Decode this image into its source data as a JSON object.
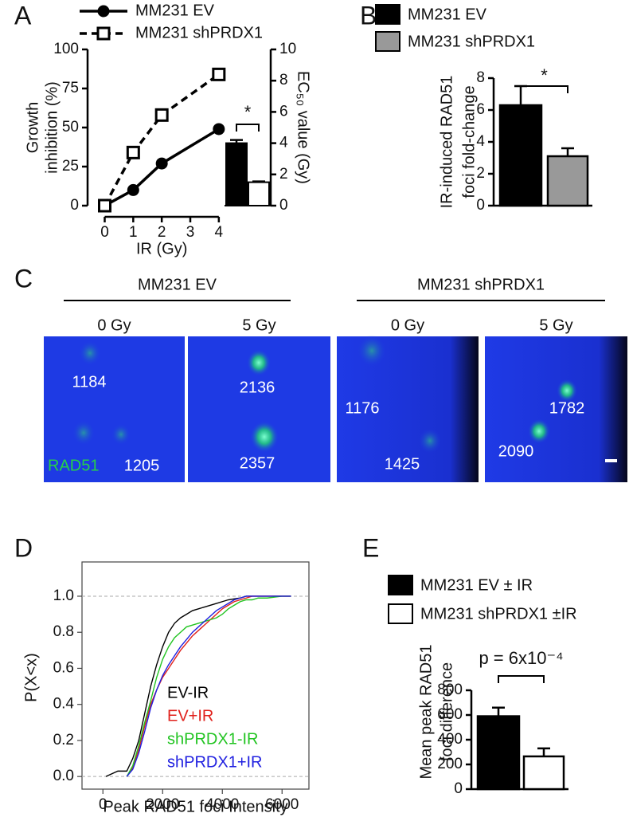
{
  "chart_data": [
    {
      "panel": "A",
      "type": "line",
      "legend": "top",
      "xlabel": "IR (Gy)",
      "ylabel": [
        "Growth",
        "inhibition (%)"
      ],
      "y2label": "EC₅₀ value (Gy)",
      "x": [
        0,
        1,
        2,
        4
      ],
      "xlim": [
        -0.6,
        4.2
      ],
      "xticks": [
        0,
        1,
        2,
        3,
        4
      ],
      "ylim": [
        0,
        100
      ],
      "yticks": [
        0,
        25,
        50,
        75,
        100
      ],
      "y2lim": [
        0,
        10
      ],
      "y2ticks": [
        0,
        2,
        4,
        6,
        8,
        10
      ],
      "series": [
        {
          "name": "MM231 EV",
          "color": "#000000",
          "marker": "circle",
          "dash": false,
          "values": [
            0,
            10,
            27,
            49
          ],
          "ec50": 4.0,
          "ec50_error": 0.2,
          "ec50_color": "#000000"
        },
        {
          "name": "MM231 shPRDX1",
          "color": "#000000",
          "marker": "square",
          "dash": true,
          "values": [
            0,
            34,
            58,
            84
          ],
          "ec50": 1.5,
          "ec50_error": 0.05,
          "ec50_color": "#ffffff"
        }
      ],
      "annotation": "*"
    },
    {
      "panel": "B",
      "type": "bar",
      "legend": "top-left",
      "ylabel": [
        "IR-induced RAD51",
        "foci fold-change"
      ],
      "ylim": [
        0,
        8
      ],
      "yticks": [
        0,
        2,
        4,
        6,
        8
      ],
      "series": [
        {
          "name": "MM231 EV",
          "color": "#000000",
          "values": [
            6.3
          ],
          "errors": [
            1.2
          ]
        },
        {
          "name": "MM231 shPRDX1",
          "color": "#999999",
          "values": [
            3.1
          ],
          "errors": [
            0.5
          ]
        }
      ],
      "annotation": "*"
    },
    {
      "panel": "C",
      "type": "image",
      "marker": "RAD51",
      "groups": [
        {
          "title": "MM231 EV",
          "images": [
            {
              "dose": "0 Gy",
              "labels": [
                "1184",
                "1205"
              ]
            },
            {
              "dose": "5 Gy",
              "labels": [
                "2136",
                "2357"
              ]
            }
          ]
        },
        {
          "title": "MM231 shPRDX1",
          "images": [
            {
              "dose": "0 Gy",
              "labels": [
                "1176",
                "1425"
              ]
            },
            {
              "dose": "5 Gy",
              "labels": [
                "1782",
                "2090"
              ]
            }
          ]
        }
      ]
    },
    {
      "panel": "D",
      "type": "line",
      "legend": "lower-right",
      "xlabel": "Peak RAD51 foci Intensity",
      "ylabel": "P(X<x)",
      "x": [
        100,
        500,
        800,
        1000,
        1200,
        1400,
        1600,
        1800,
        2000,
        2200,
        2400,
        2600,
        2800,
        3000,
        3200,
        3400,
        3600,
        3800,
        4000,
        4200,
        4400,
        4600,
        4800,
        5000,
        5200,
        5500,
        6000,
        6300
      ],
      "xlim": [
        -700,
        6900
      ],
      "xticks": [
        0,
        2000,
        4000,
        6000
      ],
      "ylim": [
        -0.07,
        1.19
      ],
      "yticks": [
        {
          "value": 0,
          "label": "0.0"
        },
        0.2,
        0.4,
        0.6,
        0.8,
        {
          "value": 1,
          "label": "1.0"
        }
      ],
      "series": [
        {
          "name": "EV-IR",
          "color": "#000000",
          "values": [
            0,
            0.03,
            0.03,
            0.1,
            0.2,
            0.35,
            0.5,
            0.62,
            0.72,
            0.8,
            0.85,
            0.88,
            0.9,
            0.92,
            0.93,
            0.94,
            0.95,
            0.96,
            0.97,
            0.98,
            0.985,
            0.99,
            1,
            1,
            1,
            1,
            1,
            1
          ]
        },
        {
          "name": "EV+IR",
          "color": "#e0201b",
          "values": [
            null,
            null,
            0,
            0.05,
            0.15,
            0.28,
            0.4,
            0.48,
            0.55,
            0.6,
            0.65,
            0.7,
            0.74,
            0.78,
            0.81,
            0.84,
            0.87,
            0.9,
            0.93,
            0.95,
            0.97,
            0.98,
            0.99,
            1,
            1,
            1,
            1,
            1
          ]
        },
        {
          "name": "shPRDX1-IR",
          "color": "#22c422",
          "values": [
            null,
            null,
            0,
            0.06,
            0.17,
            0.3,
            0.42,
            0.55,
            0.65,
            0.72,
            0.77,
            0.8,
            0.83,
            0.84,
            0.85,
            0.86,
            0.87,
            0.88,
            0.9,
            0.93,
            0.95,
            0.97,
            0.98,
            0.98,
            0.99,
            0.99,
            1,
            1
          ]
        },
        {
          "name": "shPRDX1+IR",
          "color": "#2020e0",
          "values": [
            null,
            null,
            0,
            0.04,
            0.13,
            0.25,
            0.38,
            0.48,
            0.56,
            0.62,
            0.67,
            0.72,
            0.76,
            0.8,
            0.83,
            0.86,
            0.89,
            0.92,
            0.94,
            0.96,
            0.98,
            0.99,
            1,
            1,
            1,
            1,
            1,
            1
          ]
        }
      ]
    },
    {
      "panel": "E",
      "type": "bar",
      "legend": "top-left",
      "ylabel": [
        "Mean peak RAD51",
        "foci difference"
      ],
      "ylim": [
        0,
        800
      ],
      "yticks": [
        0,
        200,
        400,
        600,
        800
      ],
      "series": [
        {
          "name": "MM231 EV ± IR",
          "color": "#000000",
          "values": [
            590
          ],
          "errors": [
            70
          ]
        },
        {
          "name": "MM231 shPRDX1 ±IR",
          "color": "#ffffff",
          "values": [
            265
          ],
          "errors": [
            65
          ]
        }
      ],
      "annotation": "p = 6x10⁻⁴"
    }
  ]
}
